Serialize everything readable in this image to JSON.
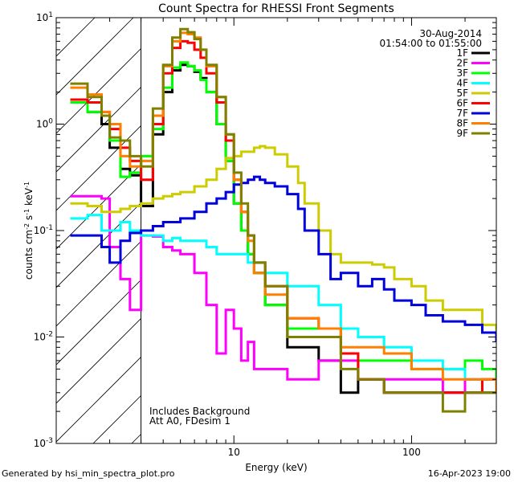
{
  "chart_data": {
    "type": "line",
    "title": "Count Spectra for RHESSI Front Segments",
    "xlabel": "Energy (keV)",
    "ylabel_parts": [
      "counts cm",
      "-2",
      " s",
      "-1",
      " keV",
      "-1"
    ],
    "xscale": "log",
    "yscale": "log",
    "xlim": [
      1.0,
      300.0
    ],
    "ylim": [
      0.001,
      10.0
    ],
    "x_ticks": [
      {
        "value": 10,
        "label": "10"
      },
      {
        "value": 100,
        "label": "100"
      }
    ],
    "y_ticks": [
      {
        "value": 0.001,
        "base": "10",
        "exp": "-3"
      },
      {
        "value": 0.01,
        "base": "10",
        "exp": "-2"
      },
      {
        "value": 0.1,
        "base": "10",
        "exp": "-1"
      },
      {
        "value": 1,
        "base": "10",
        "exp": "0"
      },
      {
        "value": 10,
        "base": "10",
        "exp": "1"
      }
    ],
    "hatched_region_max_keV": 3.0,
    "date": "30-Aug-2014",
    "time_range": "01:54:00 to 01:55:00",
    "annotation_lines": [
      "Includes Background",
      "Att A0, FDesim 1"
    ],
    "legend_position": "top-right",
    "series": [
      {
        "name": "1F",
        "color": "#000000",
        "x": [
          1.2,
          1.5,
          1.8,
          2.0,
          2.3,
          2.6,
          3.0,
          3.5,
          4.0,
          4.5,
          5.0,
          5.5,
          6.0,
          6.5,
          7.0,
          8.0,
          9.0,
          10.0,
          11.0,
          12.0,
          13.0,
          15.0,
          20.0,
          30.0,
          40.0,
          50.0,
          70.0,
          100.0,
          150.0,
          200.0,
          250.0,
          300.0
        ],
        "y": [
          1.6,
          1.3,
          1.0,
          0.6,
          0.38,
          0.33,
          0.17,
          0.8,
          2.0,
          3.2,
          3.6,
          3.5,
          3.1,
          2.7,
          2.0,
          1.0,
          0.45,
          0.18,
          0.1,
          0.06,
          0.04,
          0.02,
          0.008,
          0.006,
          0.003,
          0.004,
          0.003,
          0.003,
          0.003,
          0.003,
          0.003,
          0.003
        ]
      },
      {
        "name": "2F",
        "color": "#ff00ff",
        "x": [
          1.2,
          1.5,
          1.8,
          2.0,
          2.3,
          2.6,
          3.0,
          3.5,
          4.0,
          4.5,
          5.0,
          6.0,
          7.0,
          8.0,
          9.0,
          10.0,
          11.0,
          12.0,
          13.0,
          15.0,
          20.0,
          30.0,
          40.0,
          50.0,
          70.0,
          100.0,
          150.0,
          200.0,
          250.0,
          300.0
        ],
        "y": [
          0.21,
          0.21,
          0.2,
          0.07,
          0.035,
          0.018,
          0.09,
          0.088,
          0.07,
          0.065,
          0.06,
          0.04,
          0.02,
          0.007,
          0.018,
          0.012,
          0.006,
          0.009,
          0.005,
          0.005,
          0.004,
          0.006,
          0.006,
          0.004,
          0.004,
          0.004,
          0.003,
          0.004,
          0.004,
          0.004
        ]
      },
      {
        "name": "3F",
        "color": "#00ff00",
        "x": [
          1.2,
          1.5,
          1.8,
          2.0,
          2.3,
          2.6,
          3.0,
          3.5,
          4.0,
          4.5,
          5.0,
          5.5,
          6.0,
          6.5,
          7.0,
          8.0,
          9.0,
          10.0,
          11.0,
          12.0,
          13.0,
          15.0,
          20.0,
          30.0,
          40.0,
          50.0,
          70.0,
          100.0,
          150.0,
          200.0,
          250.0,
          300.0
        ],
        "y": [
          1.6,
          1.3,
          1.2,
          0.7,
          0.32,
          0.35,
          0.5,
          0.9,
          2.2,
          3.4,
          3.8,
          3.5,
          3.2,
          2.6,
          2.0,
          1.0,
          0.45,
          0.18,
          0.1,
          0.06,
          0.04,
          0.02,
          0.012,
          0.012,
          0.007,
          0.006,
          0.006,
          0.005,
          0.005,
          0.006,
          0.005,
          0.004
        ]
      },
      {
        "name": "4F",
        "color": "#00ffff",
        "x": [
          1.2,
          1.5,
          1.8,
          2.0,
          2.3,
          2.6,
          3.0,
          3.5,
          4.0,
          4.5,
          5.0,
          6.0,
          7.0,
          8.0,
          9.0,
          10.0,
          12.0,
          15.0,
          20.0,
          30.0,
          40.0,
          50.0,
          70.0,
          100.0,
          150.0,
          200.0,
          250.0,
          300.0
        ],
        "y": [
          0.13,
          0.14,
          0.1,
          0.1,
          0.12,
          0.1,
          0.09,
          0.09,
          0.08,
          0.085,
          0.08,
          0.08,
          0.07,
          0.06,
          0.06,
          0.06,
          0.05,
          0.04,
          0.03,
          0.02,
          0.012,
          0.01,
          0.008,
          0.006,
          0.005,
          0.004,
          0.004,
          0.003
        ]
      },
      {
        "name": "5F",
        "color": "#cccc00",
        "x": [
          1.2,
          1.5,
          1.8,
          2.0,
          2.3,
          2.6,
          3.0,
          3.5,
          4.0,
          4.5,
          5.0,
          6.0,
          7.0,
          8.0,
          9.0,
          10.0,
          11.0,
          12.0,
          13.0,
          14.0,
          15.0,
          17.0,
          20.0,
          23.0,
          25.0,
          30.0,
          35.0,
          40.0,
          50.0,
          60.0,
          70.0,
          80.0,
          100.0,
          120.0,
          150.0,
          200.0,
          250.0,
          300.0
        ],
        "y": [
          0.18,
          0.17,
          0.15,
          0.15,
          0.16,
          0.17,
          0.18,
          0.2,
          0.21,
          0.22,
          0.23,
          0.26,
          0.3,
          0.38,
          0.48,
          0.5,
          0.55,
          0.55,
          0.6,
          0.62,
          0.6,
          0.52,
          0.4,
          0.28,
          0.18,
          0.1,
          0.06,
          0.05,
          0.05,
          0.048,
          0.045,
          0.035,
          0.03,
          0.022,
          0.018,
          0.018,
          0.013,
          0.01
        ]
      },
      {
        "name": "6F",
        "color": "#ff0000",
        "x": [
          1.2,
          1.5,
          1.8,
          2.0,
          2.3,
          2.6,
          3.0,
          3.5,
          4.0,
          4.5,
          5.0,
          5.5,
          6.0,
          6.5,
          7.0,
          8.0,
          9.0,
          10.0,
          11.0,
          12.0,
          13.0,
          15.0,
          20.0,
          30.0,
          40.0,
          50.0,
          70.0,
          100.0,
          150.0,
          200.0,
          250.0,
          300.0
        ],
        "y": [
          1.7,
          1.6,
          1.3,
          0.9,
          0.6,
          0.45,
          0.3,
          1.0,
          3.0,
          5.2,
          6.0,
          5.8,
          5.0,
          4.2,
          3.0,
          1.6,
          0.7,
          0.3,
          0.15,
          0.09,
          0.05,
          0.03,
          0.015,
          0.012,
          0.007,
          0.004,
          0.003,
          0.003,
          0.003,
          0.003,
          0.004,
          0.004
        ]
      },
      {
        "name": "7F",
        "color": "#0000dd",
        "x": [
          1.2,
          1.5,
          1.8,
          2.0,
          2.3,
          2.6,
          3.0,
          3.5,
          4.0,
          4.5,
          5.0,
          6.0,
          7.0,
          8.0,
          9.0,
          10.0,
          11.0,
          12.0,
          13.0,
          14.0,
          15.0,
          17.0,
          20.0,
          23.0,
          25.0,
          30.0,
          35.0,
          40.0,
          50.0,
          60.0,
          70.0,
          80.0,
          100.0,
          120.0,
          150.0,
          200.0,
          250.0,
          300.0
        ],
        "y": [
          0.09,
          0.09,
          0.07,
          0.05,
          0.08,
          0.095,
          0.1,
          0.11,
          0.12,
          0.12,
          0.13,
          0.15,
          0.18,
          0.2,
          0.23,
          0.27,
          0.28,
          0.3,
          0.32,
          0.3,
          0.28,
          0.26,
          0.22,
          0.16,
          0.1,
          0.06,
          0.035,
          0.04,
          0.03,
          0.035,
          0.028,
          0.022,
          0.02,
          0.016,
          0.014,
          0.013,
          0.011,
          0.009
        ]
      },
      {
        "name": "8F",
        "color": "#ff7f00",
        "x": [
          1.2,
          1.5,
          1.8,
          2.0,
          2.3,
          2.6,
          3.0,
          3.5,
          4.0,
          4.5,
          5.0,
          5.5,
          6.0,
          6.5,
          7.0,
          8.0,
          9.0,
          10.0,
          11.0,
          12.0,
          13.0,
          15.0,
          20.0,
          30.0,
          40.0,
          50.0,
          70.0,
          100.0,
          150.0,
          200.0,
          250.0,
          300.0
        ],
        "y": [
          2.2,
          1.9,
          1.3,
          1.0,
          0.5,
          0.4,
          0.45,
          1.2,
          3.5,
          6.0,
          7.2,
          7.0,
          6.5,
          5.0,
          3.5,
          1.8,
          0.8,
          0.3,
          0.15,
          0.08,
          0.04,
          0.025,
          0.015,
          0.012,
          0.008,
          0.008,
          0.007,
          0.005,
          0.004,
          0.004,
          0.004,
          0.003
        ]
      },
      {
        "name": "9F",
        "color": "#808000",
        "x": [
          1.2,
          1.5,
          1.8,
          2.0,
          2.3,
          2.6,
          3.0,
          3.5,
          4.0,
          4.5,
          5.0,
          5.5,
          6.0,
          6.5,
          7.0,
          8.0,
          9.0,
          10.0,
          11.0,
          12.0,
          13.0,
          15.0,
          20.0,
          30.0,
          40.0,
          50.0,
          70.0,
          100.0,
          150.0,
          200.0,
          250.0,
          300.0
        ],
        "y": [
          2.4,
          1.8,
          1.2,
          0.75,
          0.7,
          0.5,
          0.4,
          1.4,
          3.6,
          6.5,
          7.8,
          7.3,
          6.3,
          5.0,
          3.6,
          1.8,
          0.8,
          0.35,
          0.18,
          0.09,
          0.05,
          0.03,
          0.01,
          0.01,
          0.005,
          0.004,
          0.003,
          0.003,
          0.002,
          0.003,
          0.003,
          0.003
        ]
      }
    ]
  },
  "footer": {
    "left": "Generated by hsi_min_spectra_plot.pro",
    "right": "16-Apr-2023 19:00"
  }
}
